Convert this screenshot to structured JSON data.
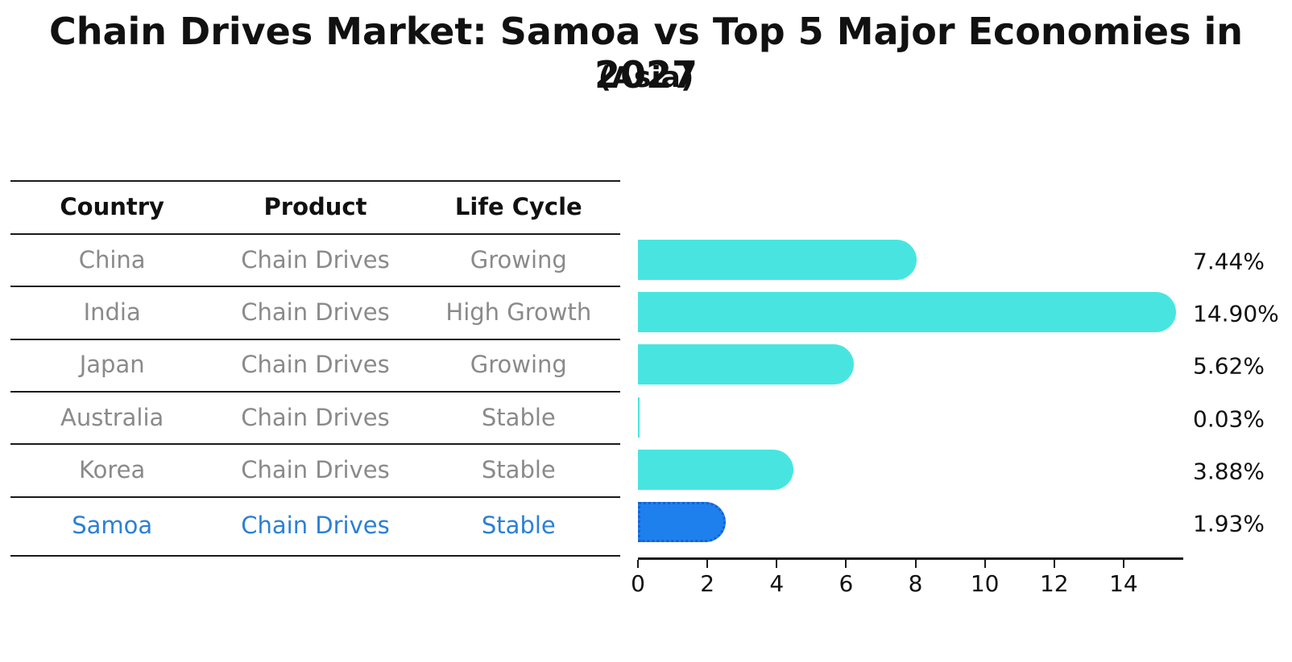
{
  "title": "Chain Drives Market: Samoa vs Top 5 Major Economies in 2027",
  "subtitle": "(Asia)",
  "table": {
    "headers": [
      "Country",
      "Product",
      "Life Cycle"
    ],
    "rows": [
      {
        "country": "China",
        "product": "Chain Drives",
        "life_cycle": "Growing",
        "highlighted": false
      },
      {
        "country": "India",
        "product": "Chain Drives",
        "life_cycle": "High Growth",
        "highlighted": false
      },
      {
        "country": "Japan",
        "product": "Chain Drives",
        "life_cycle": "Growing",
        "highlighted": false
      },
      {
        "country": "Australia",
        "product": "Chain Drives",
        "life_cycle": "Stable",
        "highlighted": false
      },
      {
        "country": "Korea",
        "product": "Chain Drives",
        "life_cycle": "Stable",
        "highlighted": false
      },
      {
        "country": "Samoa",
        "product": "Chain Drives",
        "life_cycle": "Stable",
        "highlighted": true
      }
    ]
  },
  "chart_data": {
    "type": "bar",
    "orientation": "horizontal",
    "title": "Chain Drives Market: Samoa vs Top 5 Major Economies in 2027",
    "subtitle": "(Asia)",
    "categories": [
      "China",
      "India",
      "Japan",
      "Australia",
      "Korea",
      "Samoa"
    ],
    "values": [
      7.44,
      14.9,
      5.62,
      0.03,
      3.88,
      1.93
    ],
    "value_labels": [
      "7.44%",
      "14.90%",
      "5.62%",
      "0.03%",
      "3.88%",
      "1.93%"
    ],
    "highlight_index": 5,
    "x_ticks": [
      0,
      2,
      4,
      6,
      8,
      10,
      12,
      14
    ],
    "xlim": [
      0,
      15.72
    ],
    "grid": false,
    "legend": "none",
    "bar_color": "#48E5E0",
    "highlight_bar_color": "#1E80EC",
    "highlight_border_color": "#1560D8"
  },
  "colors": {
    "highlight_text": "#2B80D6",
    "row_text": "#8A8A8A",
    "header_text": "#111111",
    "axis": "#1A1A1A",
    "background": "#FFFFFF"
  }
}
